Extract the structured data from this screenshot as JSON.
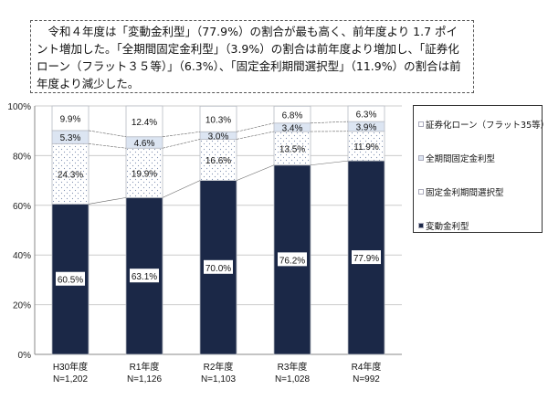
{
  "note": "令和４年度は「変動金利型」（77.9%）の割合が最も高く、前年度より 1.7 ポイント増加した。「全期間固定金利型」（3.9%）の割合は前年度より増加し、「証券化ローン（フラット３５等）」（6.3%）、「固定金利期間選択型」（11.9%）の割合は前年度より減少した。",
  "chart_data": {
    "type": "bar",
    "stacked": true,
    "categories": [
      "H30年度",
      "R1年度",
      "R2年度",
      "R3年度",
      "R4年度"
    ],
    "n_labels": [
      "N=1,202",
      "N=1,126",
      "N=1,103",
      "N=1,028",
      "N=992"
    ],
    "series": [
      {
        "name": "変動金利型",
        "values": [
          60.5,
          63.1,
          70.0,
          76.2,
          77.9
        ],
        "labels": [
          "60.5%",
          "63.1%",
          "70.0%",
          "76.2%",
          "77.9%"
        ],
        "color": "#1b2847"
      },
      {
        "name": "固定金利期間選択型",
        "values": [
          24.3,
          19.9,
          16.6,
          13.5,
          11.9
        ],
        "labels": [
          "24.3%",
          "19.9%",
          "16.6%",
          "13.5%",
          "11.9%"
        ],
        "color": "#ffffff"
      },
      {
        "name": "全期間固定金利型",
        "values": [
          5.3,
          4.6,
          3.0,
          3.4,
          3.9
        ],
        "labels": [
          "5.3%",
          "4.6%",
          "3.0%",
          "3.4%",
          "3.9%"
        ],
        "color": "#dce5f2"
      },
      {
        "name": "証券化ローン（フラット35等）",
        "values": [
          9.9,
          12.4,
          10.3,
          6.8,
          6.3
        ],
        "labels": [
          "9.9%",
          "12.4%",
          "10.3%",
          "6.8%",
          "6.3%"
        ],
        "color": "#ffffff"
      }
    ],
    "yticks": [
      "0%",
      "20%",
      "40%",
      "60%",
      "80%",
      "100%"
    ],
    "ylim": [
      0,
      100
    ],
    "legend_position": "right"
  }
}
